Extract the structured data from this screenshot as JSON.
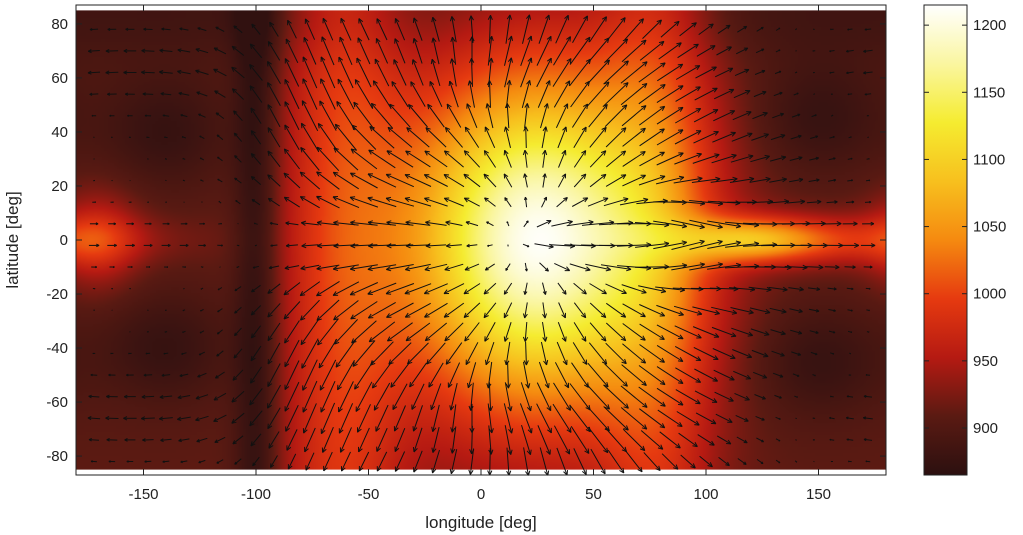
{
  "chart_data": {
    "type": "heatmap",
    "subtype": "filled-contour-with-quiver",
    "title": "",
    "xlabel": "longitude [deg]",
    "ylabel": "latitude [deg]",
    "xlim": [
      -180,
      180
    ],
    "ylim": [
      -87,
      87
    ],
    "data_lat_range": [
      -85,
      85
    ],
    "xticks": [
      -150,
      -100,
      -50,
      0,
      50,
      100,
      150
    ],
    "yticks": [
      -80,
      -60,
      -40,
      -20,
      0,
      20,
      40,
      60,
      80
    ],
    "colorbar": {
      "ticks": [
        900,
        950,
        1000,
        1050,
        1100,
        1150,
        1200
      ],
      "range": [
        865,
        1215
      ],
      "colormap": "hot",
      "colormap_stops": [
        "#2c1010",
        "#5a1a12",
        "#b51a12",
        "#e63a10",
        "#f58a10",
        "#f7c01e",
        "#f5ec30",
        "#faf6a0",
        "#ffffff"
      ]
    },
    "temperature_field": {
      "description_values": {
        "peak_K": 1215,
        "peak_location_lon_lat": [
          25,
          0
        ],
        "night_side_min_K": 870,
        "night_minima_lon_lat": [
          [
            150,
            45
          ],
          [
            150,
            -45
          ],
          [
            -140,
            40
          ],
          [
            -140,
            -40
          ]
        ],
        "equatorial_jet_tongue_lon_range": [
          100,
          180
        ],
        "cold_band_lon": -100,
        "warm_equatorial_spot_lon_lat": [
          -170,
          0
        ]
      }
    },
    "wind_field": {
      "grid_lon_step_deg": 8,
      "grid_lat_step_deg": 8,
      "features": [
        "divergent flow out of dayside hot spot",
        "converging eastward equatorial jet near lon 110",
        "polar circulation cells"
      ]
    }
  }
}
